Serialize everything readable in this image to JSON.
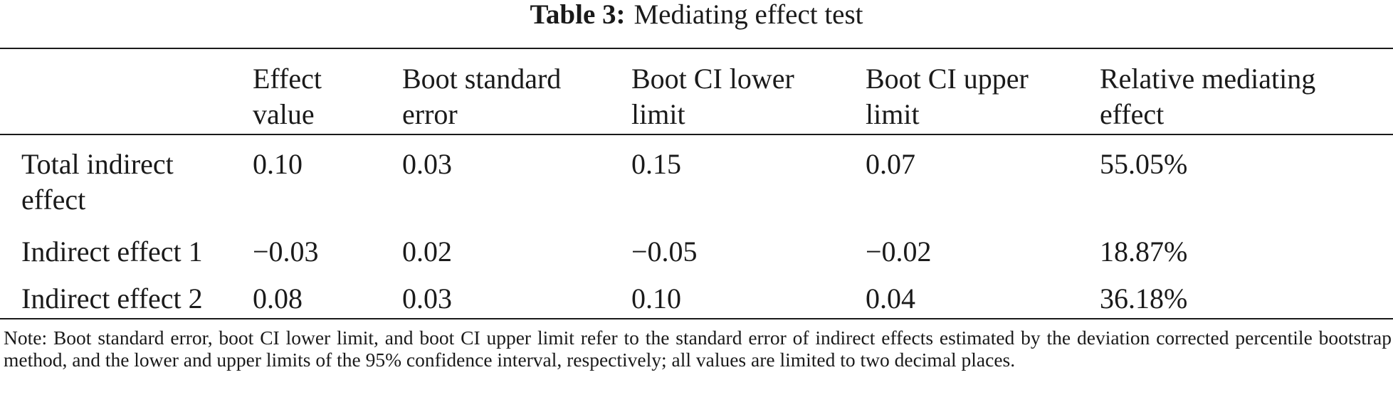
{
  "caption": {
    "label": "Table 3:",
    "title": "Mediating effect test"
  },
  "table": {
    "header": [
      "",
      "Effect\nvalue",
      "Boot standard\nerror",
      "Boot CI lower\nlimit",
      "Boot CI upper\nlimit",
      "Relative mediating\neffect"
    ],
    "rows": [
      [
        "Total indirect\neffect",
        "0.10",
        "0.03",
        "0.15",
        "0.07",
        "55.05%"
      ],
      [
        "Indirect effect 1",
        "−0.03",
        "0.02",
        "−0.05",
        "−0.02",
        "18.87%"
      ],
      [
        "Indirect effect 2",
        "0.08",
        "0.03",
        "0.10",
        "0.04",
        "36.18%"
      ]
    ]
  },
  "note": "Note: Boot standard error, boot CI lower limit, and boot CI upper limit refer to the standard error of indirect effects estimated by the deviation corrected percentile bootstrap method, and the lower and upper limits of the 95% confidence interval, respectively; all values are limited to two decimal places."
}
